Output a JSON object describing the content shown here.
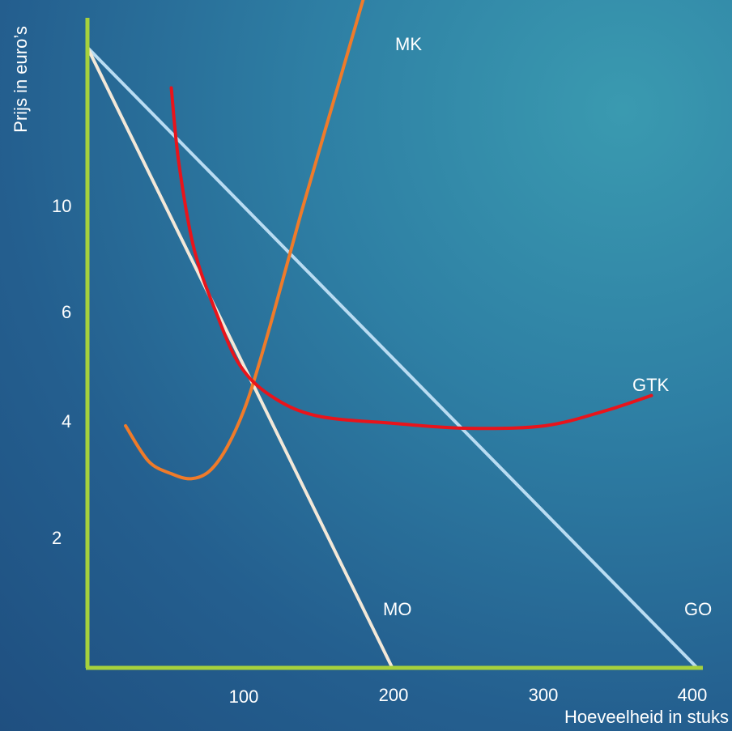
{
  "chart_data": {
    "type": "line",
    "title": "",
    "xlabel": "Hoeveelheid in stuks",
    "ylabel": "Prijs in euro’s",
    "x_ticks": [
      "100",
      "200",
      "300",
      "400"
    ],
    "y_ticks": [
      "2",
      "4",
      "6",
      "10"
    ],
    "xlim": [
      0,
      400
    ],
    "grid": false,
    "colors": {
      "axis": "#a6d13c",
      "GO": "#b9dcf2",
      "MO": "#f3e8d8",
      "MK": "#ef7b2a",
      "GTK": "#e8141b"
    },
    "series": [
      {
        "name": "GO",
        "label": "GO",
        "x": [
          0,
          400
        ],
        "y": [
          12.3,
          0
        ]
      },
      {
        "name": "MO",
        "label": "MO",
        "x": [
          0,
          200
        ],
        "y": [
          12.3,
          0
        ]
      },
      {
        "name": "MK",
        "label": "MK",
        "x": [
          25,
          40,
          55,
          68,
          80,
          92,
          105,
          120,
          140,
          165,
          190
        ],
        "y": [
          4.8,
          4.1,
          3.85,
          3.75,
          3.9,
          4.4,
          5.3,
          6.8,
          9.0,
          11.6,
          14.2
        ]
      },
      {
        "name": "GTK",
        "label": "GTK",
        "x": [
          55,
          60,
          70,
          85,
          100,
          120,
          150,
          200,
          250,
          300,
          340,
          370
        ],
        "y": [
          11.5,
          10.0,
          8.3,
          7.0,
          6.0,
          5.4,
          5.0,
          4.85,
          4.75,
          4.8,
          5.1,
          5.4
        ]
      }
    ]
  }
}
